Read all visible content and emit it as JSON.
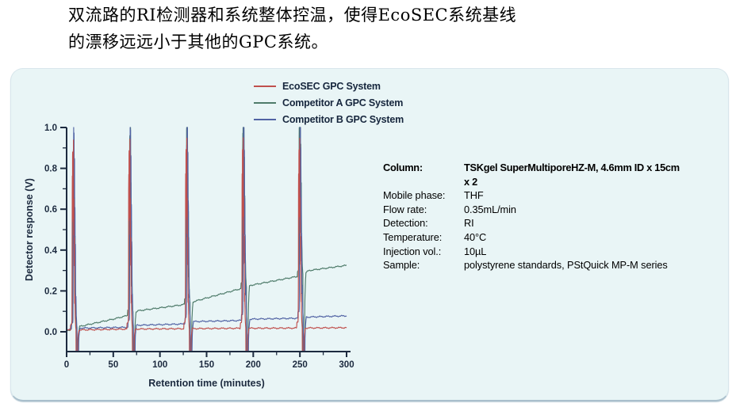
{
  "intro": {
    "line1": "双流路的RI检测器和系统整体控温，使得EcoSEC系统基线",
    "line2": "的漂移远远小于其他的GPC系统。"
  },
  "panel": {
    "background": "#e9f5f6",
    "border_color": "#a9bfcc"
  },
  "legend": {
    "items": [
      {
        "label": "EcoSEC GPC System",
        "color": "#c0504d"
      },
      {
        "label": "Competitor A GPC System",
        "color": "#4e7b6a"
      },
      {
        "label": "Competitor B GPC System",
        "color": "#5163a4"
      }
    ]
  },
  "conditions": {
    "rows": [
      {
        "label": "Column:",
        "value": "TSKgel SuperMultiporeHZ-M, 4.6mm ID x 15cm",
        "value2": "x 2",
        "bold": true
      },
      {
        "label": "Mobile phase:",
        "value": "THF",
        "bold": false
      },
      {
        "label": "Flow rate:",
        "value": "0.35mL/min",
        "bold": false
      },
      {
        "label": "Detection:",
        "value": "RI",
        "bold": false
      },
      {
        "label": "Temperature:",
        "value": "40°C",
        "bold": false
      },
      {
        "label": "Injection vol.:",
        "value": "10µL",
        "bold": false
      },
      {
        "label": "Sample:",
        "value": "polystyrene standards, PStQuick MP-M series",
        "bold": false
      }
    ]
  },
  "chart_data": {
    "type": "line",
    "title": "",
    "xlabel": "Retention time (minutes)",
    "ylabel": "Detector response (V)",
    "xlim": [
      0,
      300
    ],
    "ylim": [
      -0.1,
      1.0
    ],
    "x_ticks": [
      0,
      50,
      100,
      150,
      200,
      250,
      300
    ],
    "x_tick_labels": [
      "0",
      "50",
      "100",
      "150",
      "200",
      "250",
      "300"
    ],
    "x_minor_step": 25,
    "y_ticks": [
      0.0,
      0.2,
      0.4,
      0.6,
      0.8,
      1.0
    ],
    "y_tick_labels": [
      "0.0",
      "0.2",
      "0.4",
      "0.6",
      "0.8",
      "1.0"
    ],
    "y_minor_step": 0.1,
    "grid": false,
    "legend_position": "top-center",
    "axis_color": "#1c2a3f",
    "injection_times": [
      4.5,
      65,
      126,
      186.5,
      247
    ],
    "peak_template": [
      [
        0,
        0
      ],
      [
        0.35,
        0.027
      ],
      [
        1.45,
        0.03
      ],
      [
        1.75,
        0.05
      ],
      [
        1.95,
        0.3
      ],
      [
        2.1,
        0.87
      ],
      [
        2.3,
        0.42
      ],
      [
        2.5,
        1.0
      ],
      [
        2.7,
        0.5
      ],
      [
        2.9,
        0.96
      ],
      [
        3.1,
        0.45
      ],
      [
        3.35,
        0.93
      ],
      [
        3.6,
        0.42
      ],
      [
        3.85,
        0.64
      ],
      [
        4.1,
        0.28
      ],
      [
        4.35,
        0.45
      ],
      [
        4.6,
        0.12
      ],
      [
        4.85,
        0.17
      ],
      [
        5.3,
        0.06
      ],
      [
        5.8,
        0.012
      ],
      [
        6.05,
        0
      ]
    ],
    "dip": {
      "start": 6.05,
      "end": 7.85,
      "recover": 9.3,
      "value": -0.097
    },
    "series": [
      {
        "name": "EcoSEC GPC System",
        "color": "#c0504d",
        "x_offset": -0.55,
        "noise_phase": 0.0,
        "baseline_drift": [
          [
            0,
            0.008
          ],
          [
            60,
            0.013
          ],
          [
            120,
            0.015
          ],
          [
            180,
            0.017
          ],
          [
            240,
            0.018
          ],
          [
            300,
            0.02
          ]
        ]
      },
      {
        "name": "Competitor A GPC System",
        "color": "#4e7b6a",
        "x_offset": 0.15,
        "noise_phase": 2.1,
        "baseline_drift": [
          [
            0,
            0.005
          ],
          [
            10,
            0.018
          ],
          [
            14,
            0.026
          ],
          [
            50,
            0.062
          ],
          [
            64,
            0.078
          ],
          [
            70,
            0.09
          ],
          [
            77,
            0.103
          ],
          [
            124,
            0.132
          ],
          [
            130,
            0.138
          ],
          [
            137,
            0.149
          ],
          [
            184,
            0.208
          ],
          [
            190,
            0.214
          ],
          [
            198,
            0.228
          ],
          [
            244,
            0.268
          ],
          [
            250,
            0.273
          ],
          [
            260,
            0.3
          ],
          [
            300,
            0.325
          ]
        ]
      },
      {
        "name": "Competitor B GPC System",
        "color": "#5163a4",
        "x_offset": 0.6,
        "noise_phase": 4.2,
        "baseline_drift": [
          [
            0,
            0.01
          ],
          [
            14,
            0.018
          ],
          [
            64,
            0.022
          ],
          [
            75,
            0.032
          ],
          [
            124,
            0.038
          ],
          [
            136,
            0.05
          ],
          [
            185,
            0.055
          ],
          [
            197,
            0.062
          ],
          [
            245,
            0.066
          ],
          [
            258,
            0.072
          ],
          [
            300,
            0.078
          ]
        ]
      }
    ],
    "draw_order": [
      1,
      2,
      0
    ]
  }
}
